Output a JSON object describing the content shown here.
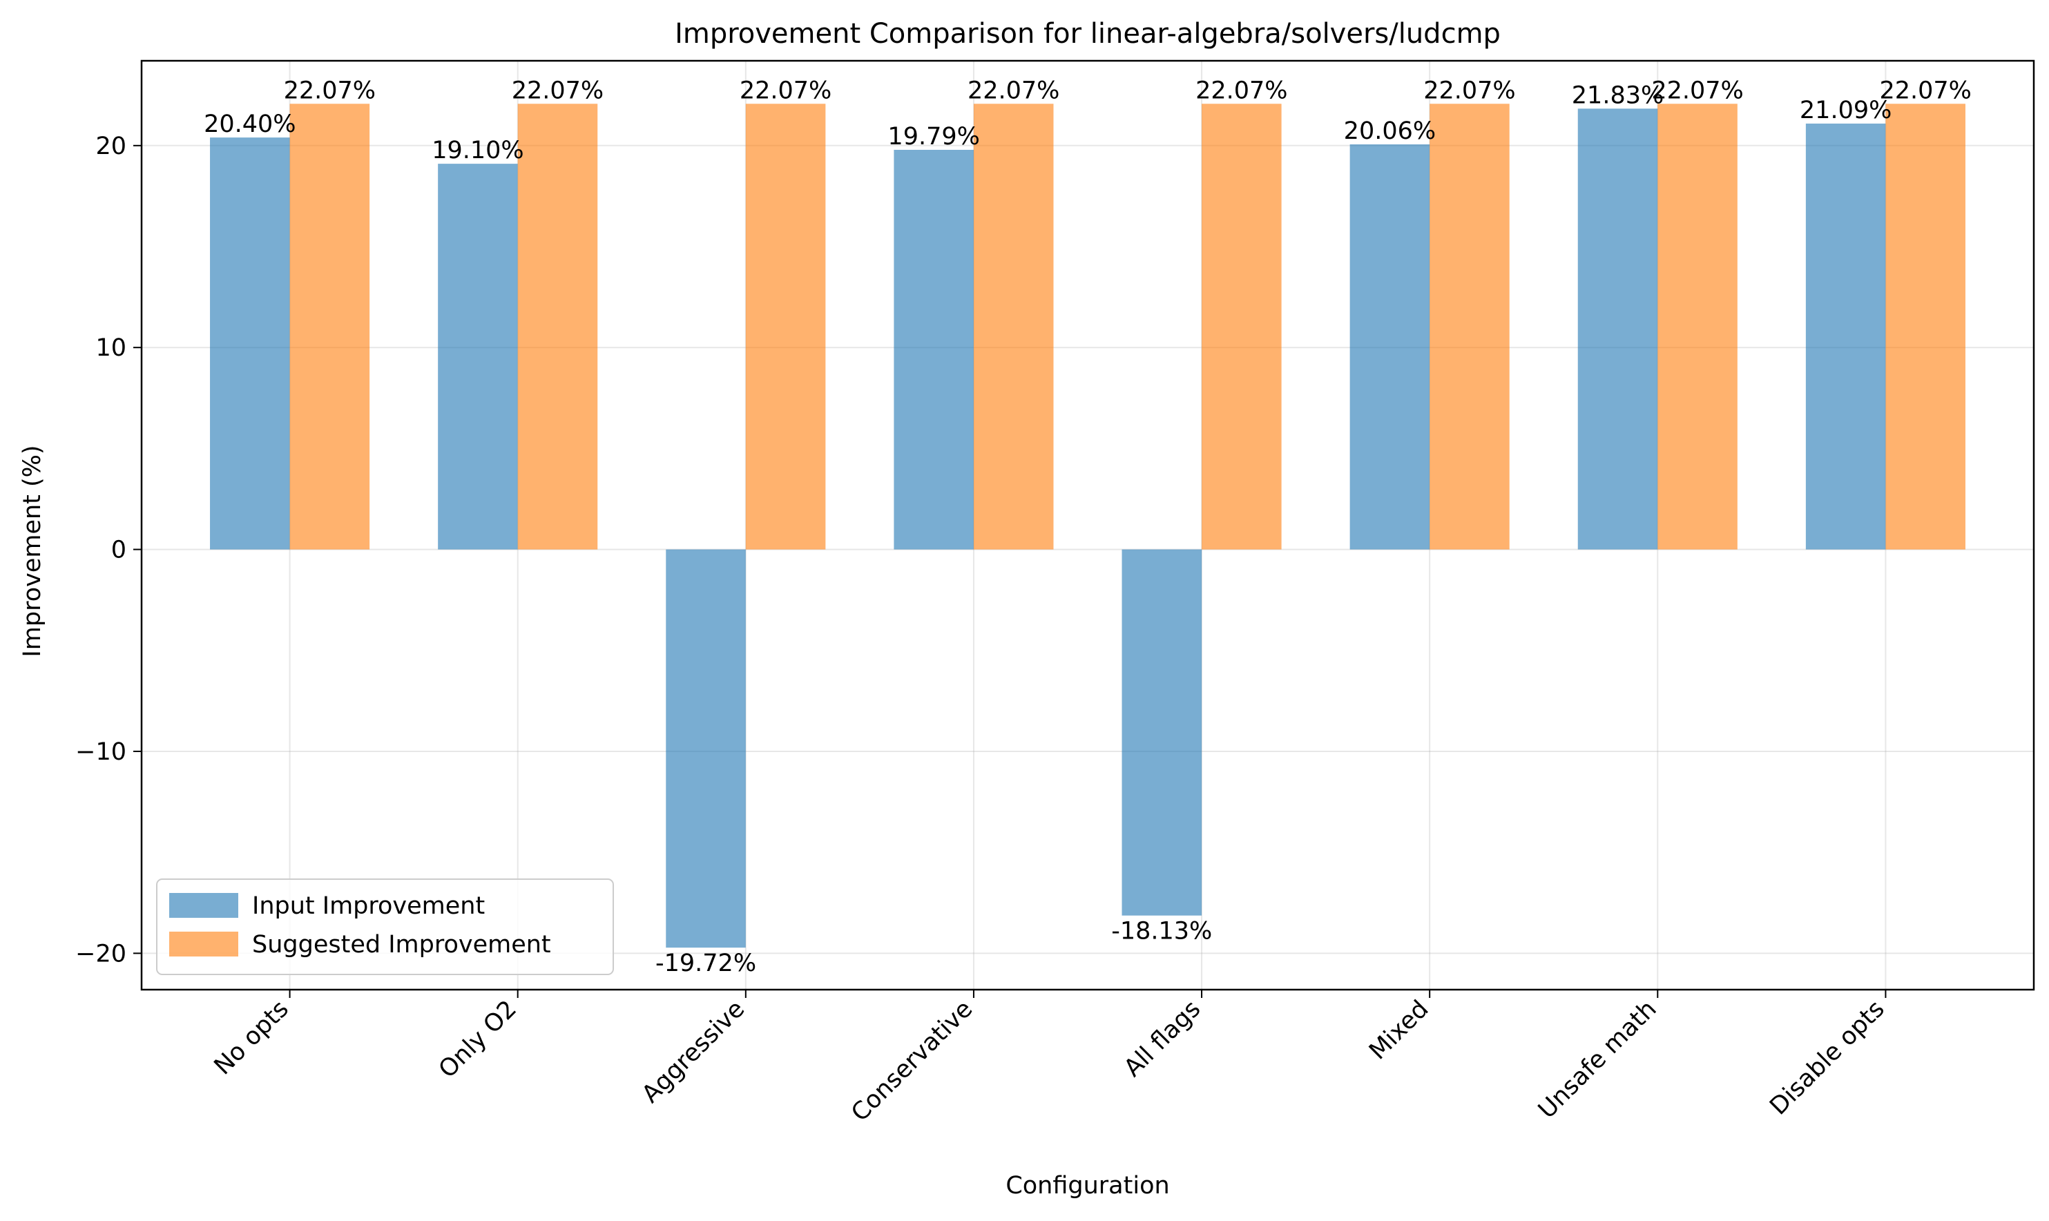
{
  "chart_data": {
    "type": "bar",
    "title": "Improvement Comparison for linear-algebra/solvers/ludcmp",
    "xlabel": "Configuration",
    "ylabel": "Improvement (%)",
    "categories": [
      "No opts",
      "Only O2",
      "Aggressive",
      "Conservative",
      "All flags",
      "Mixed",
      "Unsafe math",
      "Disable opts"
    ],
    "series": [
      {
        "name": "Input Improvement",
        "color": "#1f77b4",
        "values": [
          20.4,
          19.1,
          -19.72,
          19.79,
          -18.13,
          20.06,
          21.83,
          21.09
        ],
        "labels": [
          "20.40%",
          "19.10%",
          "-19.72%",
          "19.79%",
          "-18.13%",
          "20.06%",
          "21.83%",
          "21.09%"
        ]
      },
      {
        "name": "Suggested Improvement",
        "color": "#ff7f0e",
        "values": [
          22.07,
          22.07,
          22.07,
          22.07,
          22.07,
          22.07,
          22.07,
          22.07
        ],
        "labels": [
          "22.07%",
          "22.07%",
          "22.07%",
          "22.07%",
          "22.07%",
          "22.07%",
          "22.07%",
          "22.07%"
        ]
      }
    ],
    "ylim": [
      -21.8,
      24.2
    ],
    "yticks": [
      -20,
      -10,
      0,
      10,
      20
    ],
    "ytick_labels": [
      "−20",
      "−10",
      "0",
      "10",
      "20"
    ],
    "grid": true,
    "legend": "lower-left"
  }
}
